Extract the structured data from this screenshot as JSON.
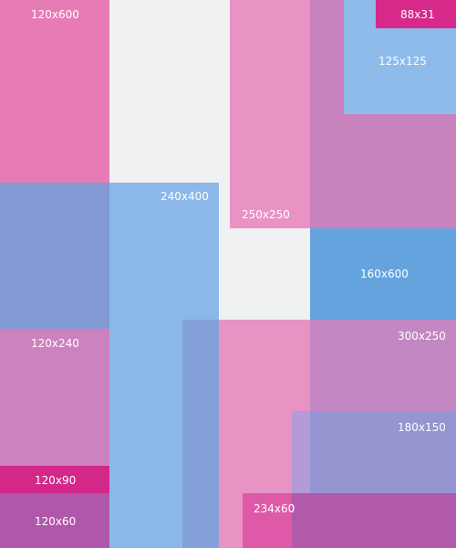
{
  "blocks": {
    "b120x600": {
      "label": "120x600",
      "color": "#e87fba"
    },
    "b240x400": {
      "label": "240x400",
      "color": "#8bb9e8"
    },
    "b250x250": {
      "label": "250x250",
      "color": "#e893c4"
    },
    "b88x31": {
      "label": "88x31",
      "color": "#d6298a"
    },
    "b125x125": {
      "label": "125x125",
      "color": "#8fbce9"
    },
    "b160x600": {
      "label": "160x600",
      "color": "#65a4df"
    },
    "b300x250": {
      "label": "300x250",
      "color": "#c386c4"
    },
    "b120x240": {
      "label": "120x240",
      "color": "#cc82be"
    },
    "b180x150": {
      "label": "180x150",
      "color": "#9595d2"
    },
    "b120x90": {
      "label": "120x90",
      "color": "#d3288a"
    },
    "b120x60": {
      "label": "120x60",
      "color": "#b057ab"
    },
    "b234x60": {
      "label": "234x60",
      "color": "#b259aa"
    }
  }
}
